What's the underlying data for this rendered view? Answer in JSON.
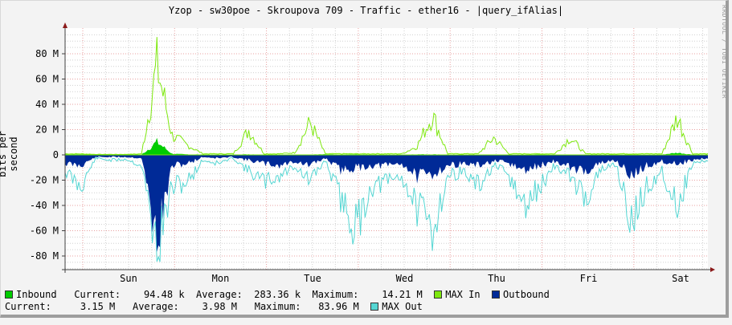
{
  "title": "Yzop - sw30poe - Skroupova 709 - Traffic - ether16 - |query_ifAlias|",
  "watermark": "RRDTOOL / TOBI OETIKER",
  "colors": {
    "inbound": "#00cc00",
    "max_in": "#7ee80e",
    "outbound": "#002a97",
    "max_out": "#55d6d3",
    "major_grid": "#e8a0a0",
    "minor_grid": "#d0d0d0",
    "axis": "#404040",
    "arrow": "#8b1a1a"
  },
  "legend": {
    "row1": {
      "inbound_label": "Inbound",
      "current_label": "Current:",
      "current_value": "94.48 k",
      "average_label": "Average:",
      "average_value": "283.36 k",
      "maximum_label": "Maximum:",
      "maximum_value": "14.21 M",
      "max_in_label": "MAX In",
      "outbound_label": "Outbound"
    },
    "row2": {
      "current_label": "Current:",
      "current_value": "3.15 M",
      "average_label": "Average:",
      "average_value": "3.98 M",
      "maximum_label": "Maximum:",
      "maximum_value": "83.96 M",
      "max_out_label": "MAX Out"
    }
  },
  "chart_data": {
    "type": "area",
    "title": "Yzop - sw30poe - Skroupova 709 - Traffic - ether16 - |query_ifAlias|",
    "xlabel": "",
    "ylabel": "bits per second",
    "ylim": [
      -90,
      100
    ],
    "yunit": "M",
    "yticks": [
      80,
      60,
      40,
      20,
      0,
      -20,
      -40,
      -60,
      -80
    ],
    "ytick_labels": [
      "80 M",
      "60 M",
      "40 M",
      "20 M",
      "0",
      "-20 M",
      "-40 M",
      "-60 M",
      "-80 M"
    ],
    "categories": [
      "Sun",
      "Mon",
      "Tue",
      "Wed",
      "Thu",
      "Fri",
      "Sat"
    ],
    "grid": true,
    "legend_position": "bottom",
    "x_hours": [
      0,
      4,
      8,
      12,
      16,
      20,
      24,
      28,
      32,
      36,
      40,
      44,
      48,
      52,
      56,
      60,
      64,
      68,
      72,
      76,
      80,
      84,
      88,
      92,
      96,
      100,
      104,
      108,
      112,
      116,
      120,
      124,
      128,
      132,
      136,
      140,
      144,
      148,
      152,
      156,
      160,
      164,
      168
    ],
    "series": [
      {
        "name": "Inbound",
        "style": "area",
        "values": [
          0.5,
          0.5,
          0.3,
          0.3,
          0.3,
          0.3,
          12,
          1,
          0.5,
          0.3,
          0.3,
          0.3,
          0.5,
          0.3,
          0.3,
          0.3,
          0.3,
          0.5,
          0.3,
          0.5,
          0.3,
          0.3,
          0.3,
          0.5,
          0.5,
          0.3,
          0.3,
          0.3,
          0.3,
          0.3,
          0.3,
          0.5,
          0.3,
          0.3,
          0.3,
          0.3,
          0.3,
          0.3,
          0.3,
          0.3,
          2,
          0.3,
          0.3
        ]
      },
      {
        "name": "MAX In",
        "style": "line",
        "values": [
          1,
          1,
          0.5,
          0.5,
          0.5,
          1,
          83,
          18,
          9,
          1,
          1,
          1,
          23,
          1,
          1,
          2,
          30,
          1,
          1,
          1,
          1,
          1,
          1,
          8,
          37,
          1,
          1,
          1,
          16,
          1,
          1,
          1,
          1,
          16,
          1,
          1,
          1,
          1,
          1,
          1,
          35,
          1,
          1
        ]
      },
      {
        "name": "Outbound",
        "style": "area",
        "values": [
          -8,
          -10,
          -2,
          -2,
          -2,
          -3,
          -80,
          -10,
          -8,
          -2,
          -3,
          -2,
          -5,
          -8,
          -10,
          -6,
          -10,
          -3,
          -14,
          -12,
          -10,
          -10,
          -8,
          -20,
          -18,
          -10,
          -8,
          -10,
          -6,
          -8,
          -15,
          -10,
          -6,
          -12,
          -15,
          -8,
          -5,
          -20,
          -10,
          -6,
          -8,
          -5,
          -3
        ]
      },
      {
        "name": "MAX Out",
        "style": "line",
        "values": [
          -15,
          -30,
          -3,
          -5,
          -4,
          -10,
          -88,
          -30,
          -25,
          -5,
          -8,
          -3,
          -15,
          -25,
          -20,
          -10,
          -25,
          -5,
          -40,
          -68,
          -30,
          -25,
          -20,
          -50,
          -70,
          -20,
          -15,
          -30,
          -10,
          -20,
          -50,
          -30,
          -10,
          -20,
          -40,
          -15,
          -8,
          -65,
          -30,
          -15,
          -48,
          -8,
          -5
        ]
      }
    ]
  }
}
